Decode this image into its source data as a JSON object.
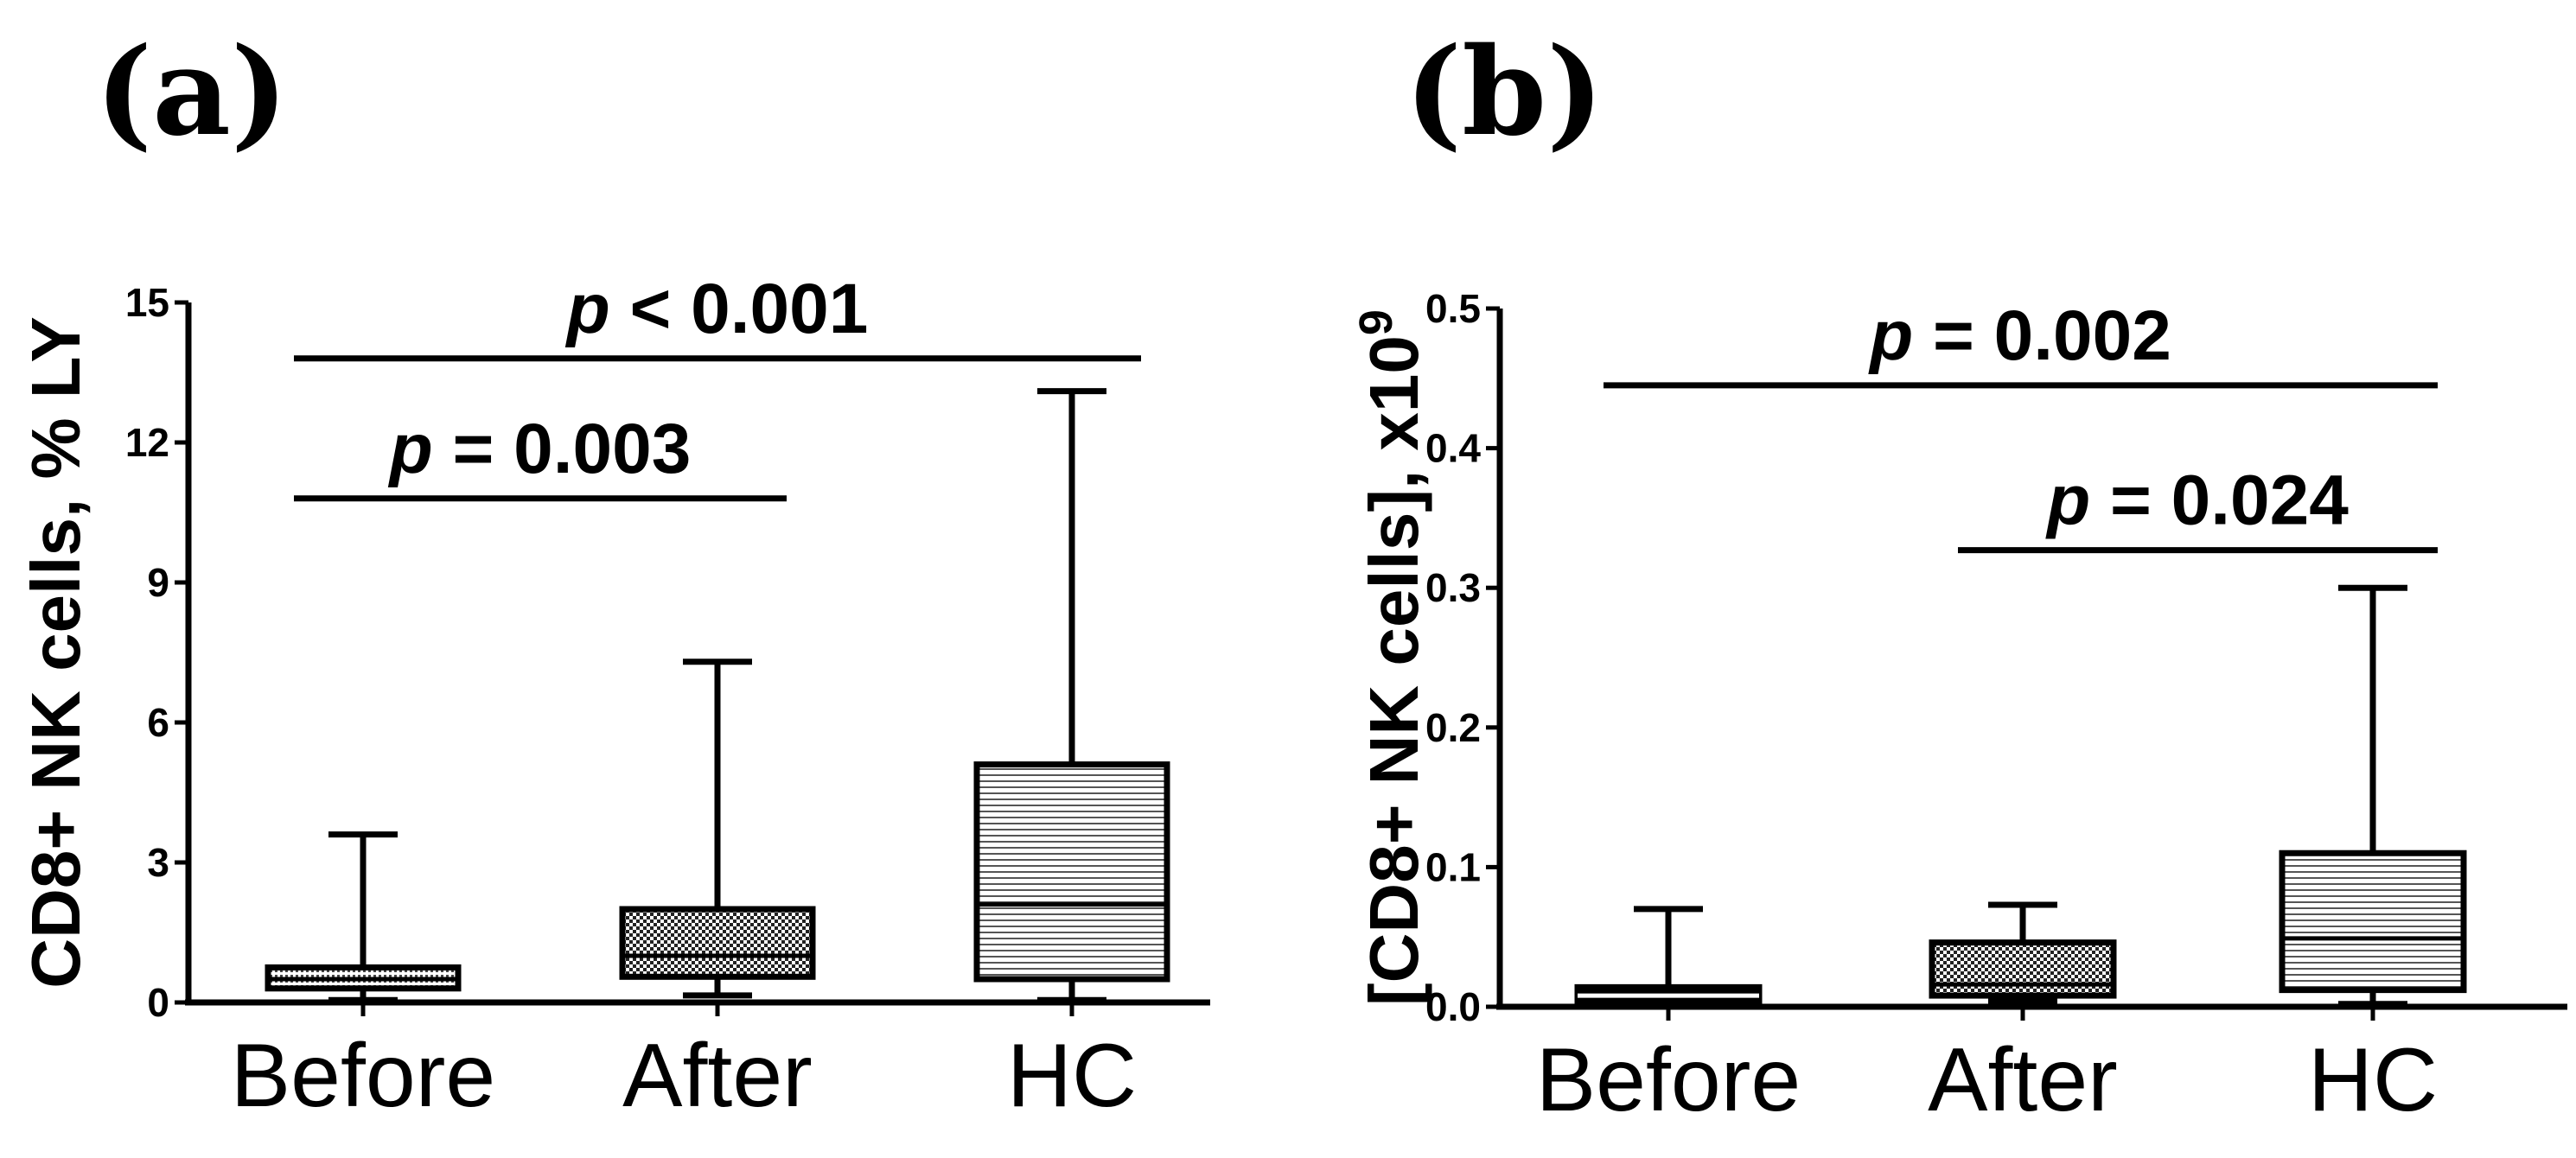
{
  "chart_data": [
    {
      "type": "box",
      "panel_label": "(a)",
      "ylabel": "CD8+ NK cells, % LY",
      "ylim": [
        0,
        15
      ],
      "yticks": [
        "0",
        "3",
        "6",
        "9",
        "12",
        "15"
      ],
      "categories": [
        "Before",
        "After",
        "HC"
      ],
      "boxes": [
        {
          "name": "Before",
          "min": 0.05,
          "q1": 0.3,
          "median": 0.5,
          "q3": 0.75,
          "max": 3.6,
          "pattern": "dots"
        },
        {
          "name": "After",
          "min": 0.15,
          "q1": 0.55,
          "median": 1.0,
          "q3": 2.0,
          "max": 7.3,
          "pattern": "checker"
        },
        {
          "name": "HC",
          "min": 0.05,
          "q1": 0.5,
          "median": 2.1,
          "q3": 5.1,
          "max": 13.1,
          "pattern": "hlines"
        }
      ],
      "significance": [
        {
          "italic": "p",
          "label": " < 0.001",
          "from": "Before",
          "to": "HC",
          "y": 13.8
        },
        {
          "italic": "p",
          "label": " = 0.003",
          "from": "Before",
          "to": "After",
          "y": 10.8
        }
      ]
    },
    {
      "type": "box",
      "panel_label": "(b)",
      "ylabel": "[CD8+ NK cells], x10",
      "ylabel_sup": "9",
      "ylim": [
        0,
        0.5
      ],
      "yticks": [
        "0.0",
        "0.1",
        "0.2",
        "0.3",
        "0.4",
        "0.5"
      ],
      "categories": [
        "Before",
        "After",
        "HC"
      ],
      "boxes": [
        {
          "name": "Before",
          "min": 0.0,
          "q1": 0.002,
          "median": 0.008,
          "q3": 0.014,
          "max": 0.07,
          "pattern": "solid"
        },
        {
          "name": "After",
          "min": 0.004,
          "q1": 0.008,
          "median": 0.016,
          "q3": 0.046,
          "max": 0.073,
          "pattern": "checker"
        },
        {
          "name": "HC",
          "min": 0.002,
          "q1": 0.012,
          "median": 0.049,
          "q3": 0.11,
          "max": 0.3,
          "pattern": "hlines"
        }
      ],
      "significance": [
        {
          "italic": "p",
          "label": " = 0.002",
          "from": "Before",
          "to": "HC",
          "y": 0.445
        },
        {
          "italic": "p",
          "label": " = 0.024",
          "from": "After",
          "to": "HC",
          "y": 0.327
        }
      ]
    }
  ]
}
